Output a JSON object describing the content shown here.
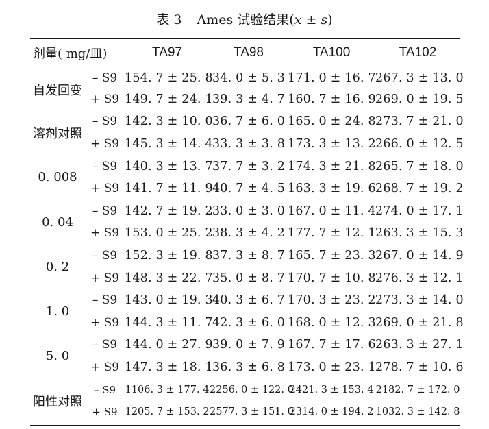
{
  "caption": {
    "label": "表 3",
    "title_prefix": "Ames 试验结果(",
    "xbar": "x",
    "pm_s": " ± ",
    "s": "s",
    "close": ")"
  },
  "table": {
    "header": {
      "dose": "剂量( mg/皿)",
      "strains": [
        "TA97",
        "TA98",
        "TA100",
        "TA102"
      ]
    },
    "groups": [
      {
        "name": "自发回变",
        "rows": [
          {
            "s9": "– S9",
            "values": [
              "154. 7 ± 25. 8",
              "34. 0 ± 5. 3",
              "171. 0 ± 16. 7",
              "267. 3 ± 13. 0"
            ]
          },
          {
            "s9": "+ S9",
            "values": [
              "149. 7 ± 24. 1",
              "39. 3 ± 4. 7",
              "160. 7 ± 16. 9",
              "269. 0 ± 19. 5"
            ]
          }
        ]
      },
      {
        "name": "溶剂对照",
        "rows": [
          {
            "s9": "– S9",
            "values": [
              "142. 3 ± 10. 0",
              "36. 7 ± 6. 0",
              "165. 0 ± 24. 8",
              "273. 7 ± 21. 0"
            ]
          },
          {
            "s9": "+ S9",
            "values": [
              "145. 3 ± 14. 4",
              "33. 3 ± 3. 8",
              "173. 3 ± 13. 2",
              "266. 0 ± 12. 5"
            ]
          }
        ]
      },
      {
        "name": "0. 008",
        "rows": [
          {
            "s9": "– S9",
            "values": [
              "140. 3 ± 13. 7",
              "37. 7 ± 3. 2",
              "174. 3 ± 21. 8",
              "265. 7 ± 18. 0"
            ]
          },
          {
            "s9": "+ S9",
            "values": [
              "141. 7 ± 11. 9",
              "40. 7 ± 4. 5",
              "163. 3 ± 19. 6",
              "268. 7 ± 19. 2"
            ]
          }
        ]
      },
      {
        "name": "0. 04",
        "rows": [
          {
            "s9": "– S9",
            "values": [
              "142. 7 ± 19. 2",
              "33. 0 ± 3. 0",
              "167. 0 ± 11. 4",
              "274. 0 ± 17. 1"
            ]
          },
          {
            "s9": "+ S9",
            "values": [
              "153. 0 ± 25. 2",
              "38. 3 ± 4. 2",
              "177. 7 ± 12. 1",
              "263. 3 ± 15. 3"
            ]
          }
        ]
      },
      {
        "name": "0. 2",
        "rows": [
          {
            "s9": "– S9",
            "values": [
              "152. 3 ± 19. 8",
              "37. 3 ± 8. 7",
              "165. 7 ± 23. 3",
              "267. 0 ± 14. 9"
            ]
          },
          {
            "s9": "+ S9",
            "values": [
              "148. 3 ± 22. 7",
              "35. 0 ± 8. 7",
              "170. 7 ± 10. 8",
              "276. 3 ± 12. 1"
            ]
          }
        ]
      },
      {
        "name": "1. 0",
        "rows": [
          {
            "s9": "– S9",
            "values": [
              "143. 0 ± 19. 3",
              "40. 3 ± 6. 7",
              "170. 3 ± 23. 2",
              "273. 3 ± 14. 0"
            ]
          },
          {
            "s9": "+ S9",
            "values": [
              "144. 3 ± 11. 7",
              "42. 3 ± 6. 0",
              "168. 0 ± 12. 3",
              "269. 0 ± 21. 8"
            ]
          }
        ]
      },
      {
        "name": "5. 0",
        "rows": [
          {
            "s9": "– S9",
            "values": [
              "144. 0 ± 27. 9",
              "39. 0 ± 7. 9",
              "167. 7 ± 17. 6",
              "263. 3 ± 27. 1"
            ]
          },
          {
            "s9": "+ S9",
            "values": [
              "147. 3 ± 18. 1",
              "36. 3 ± 6. 8",
              "173. 0 ± 23. 1",
              "278. 7 ± 10. 6"
            ]
          }
        ]
      },
      {
        "name": "阳性对照",
        "small": true,
        "rows": [
          {
            "s9": "– S9",
            "values": [
              "1106. 3 ± 177. 4",
              "2256. 0 ± 122. 0",
              "2421. 3 ± 153. 4",
              "2182. 7 ± 172. 0"
            ]
          },
          {
            "s9": "+ S9",
            "values": [
              "1205. 7 ± 153. 2",
              "2577. 3 ± 151. 0",
              "2314. 0 ± 194. 2",
              "1032. 3 ± 142. 8"
            ]
          }
        ]
      }
    ]
  }
}
